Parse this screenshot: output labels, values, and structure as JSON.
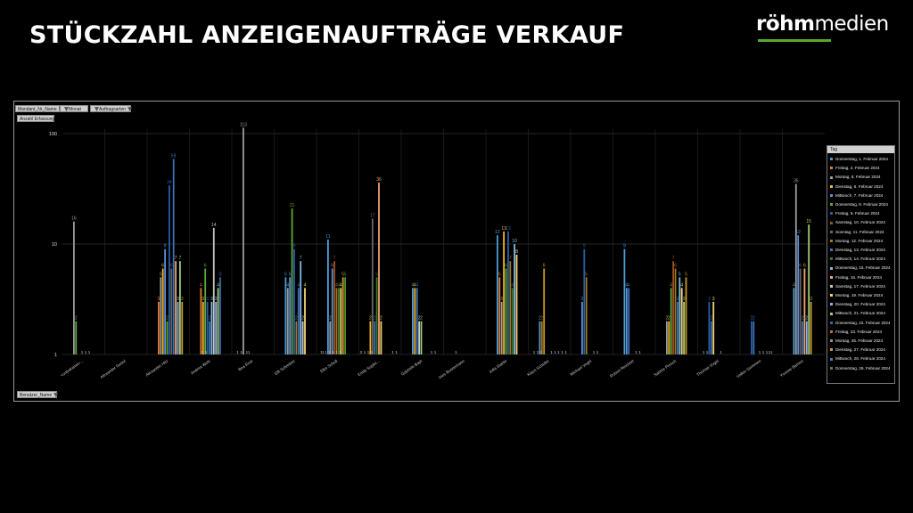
{
  "page": {
    "title": "STÜCKZAHL ANZEIGENAUFTRÄGE VERKAUF",
    "logo": {
      "bold": "röhm",
      "regular": "medien"
    }
  },
  "pivot": {
    "filters": [
      {
        "label": "Mandant_Nr_Name"
      },
      {
        "label": "Monat"
      },
      {
        "label": "Auftragsarten"
      }
    ],
    "value_field": "Anzahl Erfassung",
    "axis_field": "Benutzer_Name",
    "legend_field": "Tag"
  },
  "colors": [
    "#4a9ed6",
    "#e07b39",
    "#9c9c9c",
    "#f0b429",
    "#5b8fd9",
    "#5ea83a",
    "#2a5ea6",
    "#9e4f1f",
    "#666666",
    "#a0781a",
    "#3b72b9",
    "#3d7a2c",
    "#7eb8e8",
    "#f0a070",
    "#c4c4c4",
    "#f7d070",
    "#8fb0e8",
    "#9ed07a",
    "#3a69a8",
    "#c8683a",
    "#909090",
    "#c89a2a",
    "#3a80c9",
    "#4a8e2a"
  ],
  "chart_data": {
    "type": "bar",
    "y_scale": "log",
    "ylim": [
      1,
      100
    ],
    "y_ticks": [
      "1",
      "10",
      "100"
    ],
    "grid": true,
    "legend_position": "right",
    "categories": [
      "<unbekannt>...",
      "Alexander Gebel",
      "Alexander Hitz",
      "Andrea Wolz",
      "Bea Rost",
      "Elfi Schreiber",
      "Elke Scholl",
      "Emily Supke...",
      "Gabriele Bapt",
      "Ines Bonnemann",
      "Julia Stahle",
      "Klaus Scheller",
      "Michael Vogel",
      "Robert Reichert",
      "Sabine Presch",
      "Thomas Vogel",
      "Volker Gemmen",
      "Yvonne Barnes"
    ],
    "series": [
      {
        "name": "Donnerstag, 1. Februar 2024",
        "values": [
          null,
          null,
          null,
          null,
          null,
          5,
          11,
          null,
          4,
          null,
          12,
          null,
          null,
          9,
          null,
          null,
          null,
          4
        ]
      },
      {
        "name": "Freitag, 2. Februar 2024",
        "values": [
          null,
          null,
          3,
          4,
          null,
          null,
          null,
          null,
          null,
          null,
          5,
          null,
          null,
          null,
          null,
          null,
          null,
          null
        ]
      },
      {
        "name": "Montag, 5. Februar 2024",
        "values": [
          16,
          null,
          5,
          null,
          113,
          4,
          2,
          null,
          null,
          null,
          3,
          null,
          null,
          null,
          2,
          null,
          null,
          35
        ]
      },
      {
        "name": "Dienstag, 6. Februar 2024",
        "values": [
          null,
          null,
          6,
          3,
          null,
          null,
          null,
          2,
          4,
          null,
          13,
          null,
          null,
          null,
          2,
          null,
          null,
          null
        ]
      },
      {
        "name": "Mittwoch, 7. Februar 2024",
        "values": [
          null,
          null,
          9,
          null,
          null,
          5,
          6,
          null,
          null,
          null,
          null,
          2,
          3,
          4,
          null,
          null,
          null,
          12
        ]
      },
      {
        "name": "Donnerstag, 8. Februar 2024",
        "values": [
          2,
          null,
          2,
          6,
          null,
          21,
          null,
          null,
          null,
          null,
          6,
          null,
          null,
          null,
          4,
          null,
          null,
          null
        ]
      },
      {
        "name": "Freitag, 9. Februar 2024",
        "values": [
          null,
          null,
          34,
          3,
          null,
          9,
          null,
          null,
          null,
          null,
          13,
          null,
          9,
          null,
          null,
          3,
          2,
          null
        ]
      },
      {
        "name": "Samstag, 10. Februar 2024",
        "values": [
          null,
          null,
          null,
          null,
          null,
          null,
          7,
          null,
          null,
          null,
          null,
          null,
          null,
          null,
          7,
          null,
          null,
          null
        ]
      },
      {
        "name": "Sonntag, 11. Februar 2024",
        "values": [
          null,
          null,
          6,
          null,
          null,
          null,
          null,
          17,
          null,
          null,
          null,
          null,
          null,
          null,
          null,
          null,
          null,
          6
        ]
      },
      {
        "name": "Montag, 12. Februar 2024",
        "values": [
          null,
          null,
          null,
          null,
          null,
          2,
          4,
          null,
          null,
          null,
          7,
          2,
          5,
          null,
          6,
          null,
          null,
          null
        ]
      },
      {
        "name": "Dienstag, 13. Februar 2024",
        "values": [
          null,
          null,
          59,
          2,
          null,
          4,
          null,
          2,
          4,
          null,
          null,
          null,
          null,
          4,
          3,
          2,
          2,
          2
        ]
      },
      {
        "name": "Mittwoch, 14. Februar 2024",
        "values": [
          null,
          null,
          null,
          null,
          null,
          null,
          4,
          5,
          null,
          null,
          4,
          null,
          null,
          null,
          null,
          null,
          null,
          null
        ]
      },
      {
        "name": "Donnerstag, 15. Februar 2024",
        "values": [
          null,
          null,
          null,
          3,
          null,
          7,
          null,
          null,
          null,
          null,
          10,
          null,
          null,
          null,
          5,
          null,
          null,
          null
        ]
      },
      {
        "name": "Freitag, 16. Februar 2024",
        "values": [
          null,
          null,
          7,
          null,
          null,
          null,
          null,
          36,
          null,
          null,
          null,
          null,
          null,
          null,
          null,
          null,
          null,
          6
        ]
      },
      {
        "name": "Samstag, 17. Februar 2024",
        "values": [
          null,
          null,
          null,
          14,
          null,
          2,
          null,
          null,
          2,
          null,
          null,
          null,
          null,
          null,
          null,
          null,
          null,
          null
        ]
      },
      {
        "name": "Montag, 19. Februar 2024",
        "values": [
          null,
          null,
          null,
          null,
          null,
          4,
          4,
          2,
          null,
          null,
          8,
          null,
          null,
          null,
          4,
          3,
          null,
          null
        ]
      },
      {
        "name": "Dienstag, 20. Februar 2024",
        "values": [
          null,
          null,
          3,
          3,
          null,
          null,
          null,
          null,
          null,
          null,
          null,
          null,
          null,
          null,
          null,
          null,
          null,
          2
        ]
      },
      {
        "name": "Mittwoch, 21. Februar 2024",
        "values": [
          null,
          null,
          7,
          4,
          null,
          null,
          null,
          null,
          2,
          null,
          null,
          null,
          null,
          null,
          3,
          null,
          null,
          15
        ]
      },
      {
        "name": "Donnerstag, 22. Februar 2024",
        "values": [
          null,
          null,
          null,
          5,
          null,
          null,
          null,
          null,
          null,
          null,
          null,
          null,
          null,
          null,
          null,
          null,
          null,
          null
        ]
      },
      {
        "name": "Freitag, 23. Februar 2024",
        "values": [
          null,
          null,
          null,
          null,
          null,
          null,
          null,
          null,
          null,
          null,
          null,
          null,
          null,
          null,
          null,
          null,
          null,
          null
        ]
      },
      {
        "name": "Montag, 26. Februar 2024",
        "values": [
          null,
          null,
          null,
          null,
          null,
          null,
          null,
          null,
          null,
          null,
          null,
          null,
          null,
          null,
          null,
          null,
          null,
          null
        ]
      },
      {
        "name": "Dienstag, 27. Februar 2024",
        "values": [
          null,
          null,
          3,
          null,
          null,
          null,
          5,
          null,
          null,
          null,
          null,
          6,
          null,
          null,
          5,
          null,
          null,
          3
        ]
      },
      {
        "name": "Mittwoch, 28. Februar 2024",
        "values": [
          null,
          null,
          null,
          null,
          null,
          null,
          null,
          null,
          null,
          null,
          null,
          null,
          null,
          null,
          null,
          null,
          null,
          null
        ]
      },
      {
        "name": "Donnerstag, 29. Februar 2024",
        "values": [
          null,
          null,
          null,
          null,
          null,
          null,
          5,
          null,
          null,
          null,
          null,
          null,
          null,
          null,
          null,
          null,
          null,
          null
        ]
      }
    ],
    "ones": [
      [
        "1",
        "1",
        "1"
      ],
      [],
      [
        "1",
        "1"
      ],
      [
        "1",
        "1"
      ],
      [
        "11"
      ],
      [
        "11",
        "1",
        "1",
        "1",
        "1",
        "1"
      ],
      [
        "2",
        "1",
        "1",
        "1"
      ],
      [
        "1",
        "1"
      ],
      [
        "1",
        "1"
      ],
      [
        "1"
      ],
      [
        "1",
        "1",
        "1"
      ],
      [
        "1",
        "1",
        "1",
        "1",
        "1"
      ],
      [
        "1",
        "1"
      ],
      [
        "1",
        "1"
      ],
      [
        "1",
        "1"
      ],
      [
        "1"
      ],
      [
        "1",
        "1",
        "1",
        "11"
      ],
      [
        "1"
      ]
    ]
  }
}
